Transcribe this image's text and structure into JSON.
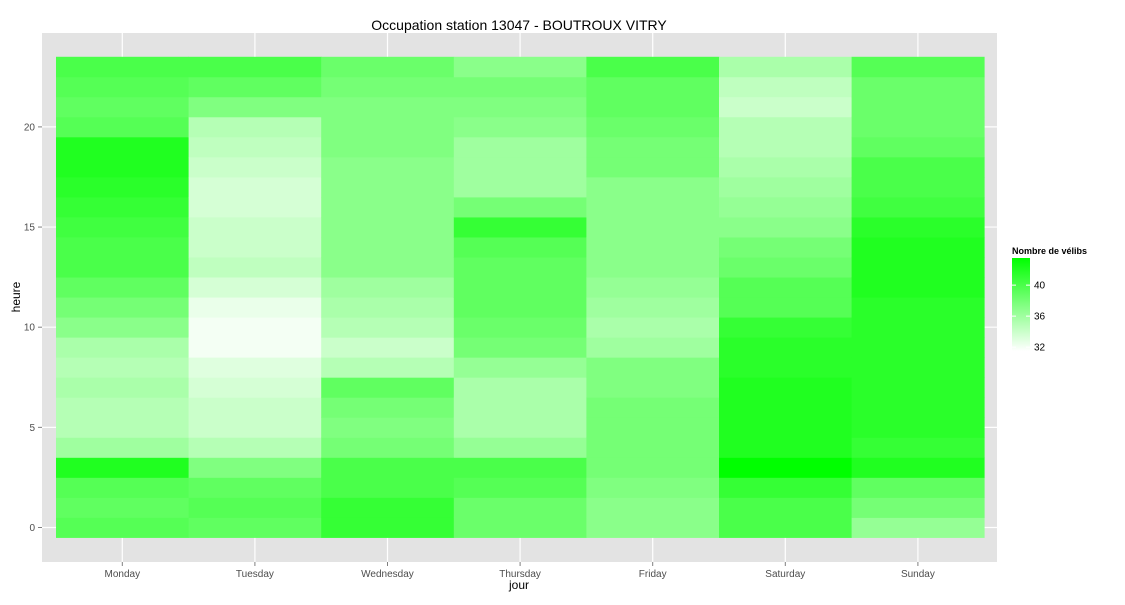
{
  "chart_data": {
    "type": "heatmap",
    "title": "Occupation station 13047 - BOUTROUX VITRY",
    "xlabel": "jour",
    "ylabel": "heure",
    "categories": [
      "Monday",
      "Tuesday",
      "Wednesday",
      "Thursday",
      "Friday",
      "Saturday",
      "Sunday"
    ],
    "hours": [
      0,
      1,
      2,
      3,
      4,
      5,
      6,
      7,
      8,
      9,
      10,
      11,
      12,
      13,
      14,
      15,
      16,
      17,
      18,
      19,
      20,
      21,
      22,
      23
    ],
    "y_ticks": [
      0,
      5,
      10,
      15,
      20
    ],
    "ylim": [
      -0.5,
      23.5
    ],
    "grid": true,
    "values": [
      [
        39.5,
        39.0,
        39.5,
        42.0,
        36.0,
        35.0,
        35.0,
        35.5,
        35.0,
        35.5,
        37.0,
        38.0,
        39.0,
        40.0,
        40.0,
        40.5,
        41.0,
        41.5,
        42.0,
        42.0,
        39.5,
        39.0,
        39.5,
        40.0
      ],
      [
        39.0,
        39.5,
        39.0,
        37.5,
        35.0,
        34.0,
        34.0,
        33.5,
        33.0,
        32.0,
        32.0,
        32.5,
        33.5,
        34.5,
        34.0,
        34.0,
        33.5,
        33.5,
        34.0,
        34.5,
        35.0,
        37.5,
        39.0,
        40.0
      ],
      [
        41.0,
        41.0,
        40.0,
        40.0,
        38.0,
        37.5,
        38.0,
        39.0,
        35.0,
        34.0,
        35.0,
        35.5,
        36.0,
        37.0,
        37.0,
        37.0,
        37.0,
        37.0,
        37.0,
        37.5,
        37.5,
        37.5,
        38.0,
        38.5
      ],
      [
        38.5,
        38.5,
        39.5,
        40.0,
        36.5,
        35.5,
        35.5,
        35.5,
        36.5,
        38.0,
        38.5,
        39.0,
        39.0,
        39.0,
        39.5,
        41.0,
        38.0,
        36.0,
        36.0,
        36.0,
        37.0,
        37.5,
        38.0,
        37.0
      ],
      [
        37.0,
        37.0,
        37.5,
        38.0,
        38.0,
        38.0,
        38.0,
        37.5,
        37.5,
        36.0,
        35.5,
        36.0,
        36.5,
        37.0,
        37.0,
        37.0,
        37.0,
        37.0,
        38.0,
        38.0,
        38.5,
        39.0,
        39.0,
        40.0
      ],
      [
        40.0,
        40.0,
        41.0,
        46.5,
        42.0,
        42.0,
        42.0,
        42.0,
        41.5,
        41.5,
        41.0,
        39.5,
        39.5,
        38.5,
        38.0,
        37.0,
        36.5,
        36.0,
        35.5,
        35.0,
        35.0,
        34.0,
        34.5,
        35.5
      ],
      [
        36.5,
        38.0,
        39.0,
        42.0,
        41.0,
        41.5,
        41.5,
        41.5,
        41.5,
        41.5,
        41.5,
        41.5,
        42.0,
        42.0,
        42.0,
        41.5,
        40.5,
        40.0,
        40.0,
        39.0,
        38.5,
        38.5,
        38.5,
        39.5
      ]
    ],
    "legend": {
      "title": "Nombre de vélibs",
      "ticks": [
        32,
        36,
        40
      ],
      "range": [
        31.5,
        43.5
      ],
      "low_color": "#ffffff",
      "high_color": "#00ff00",
      "placement": "right"
    },
    "colors": {
      "panel_background": "#e3e3e3",
      "gridline": "#ffffff",
      "tick_text": "#4d4d4d"
    }
  }
}
